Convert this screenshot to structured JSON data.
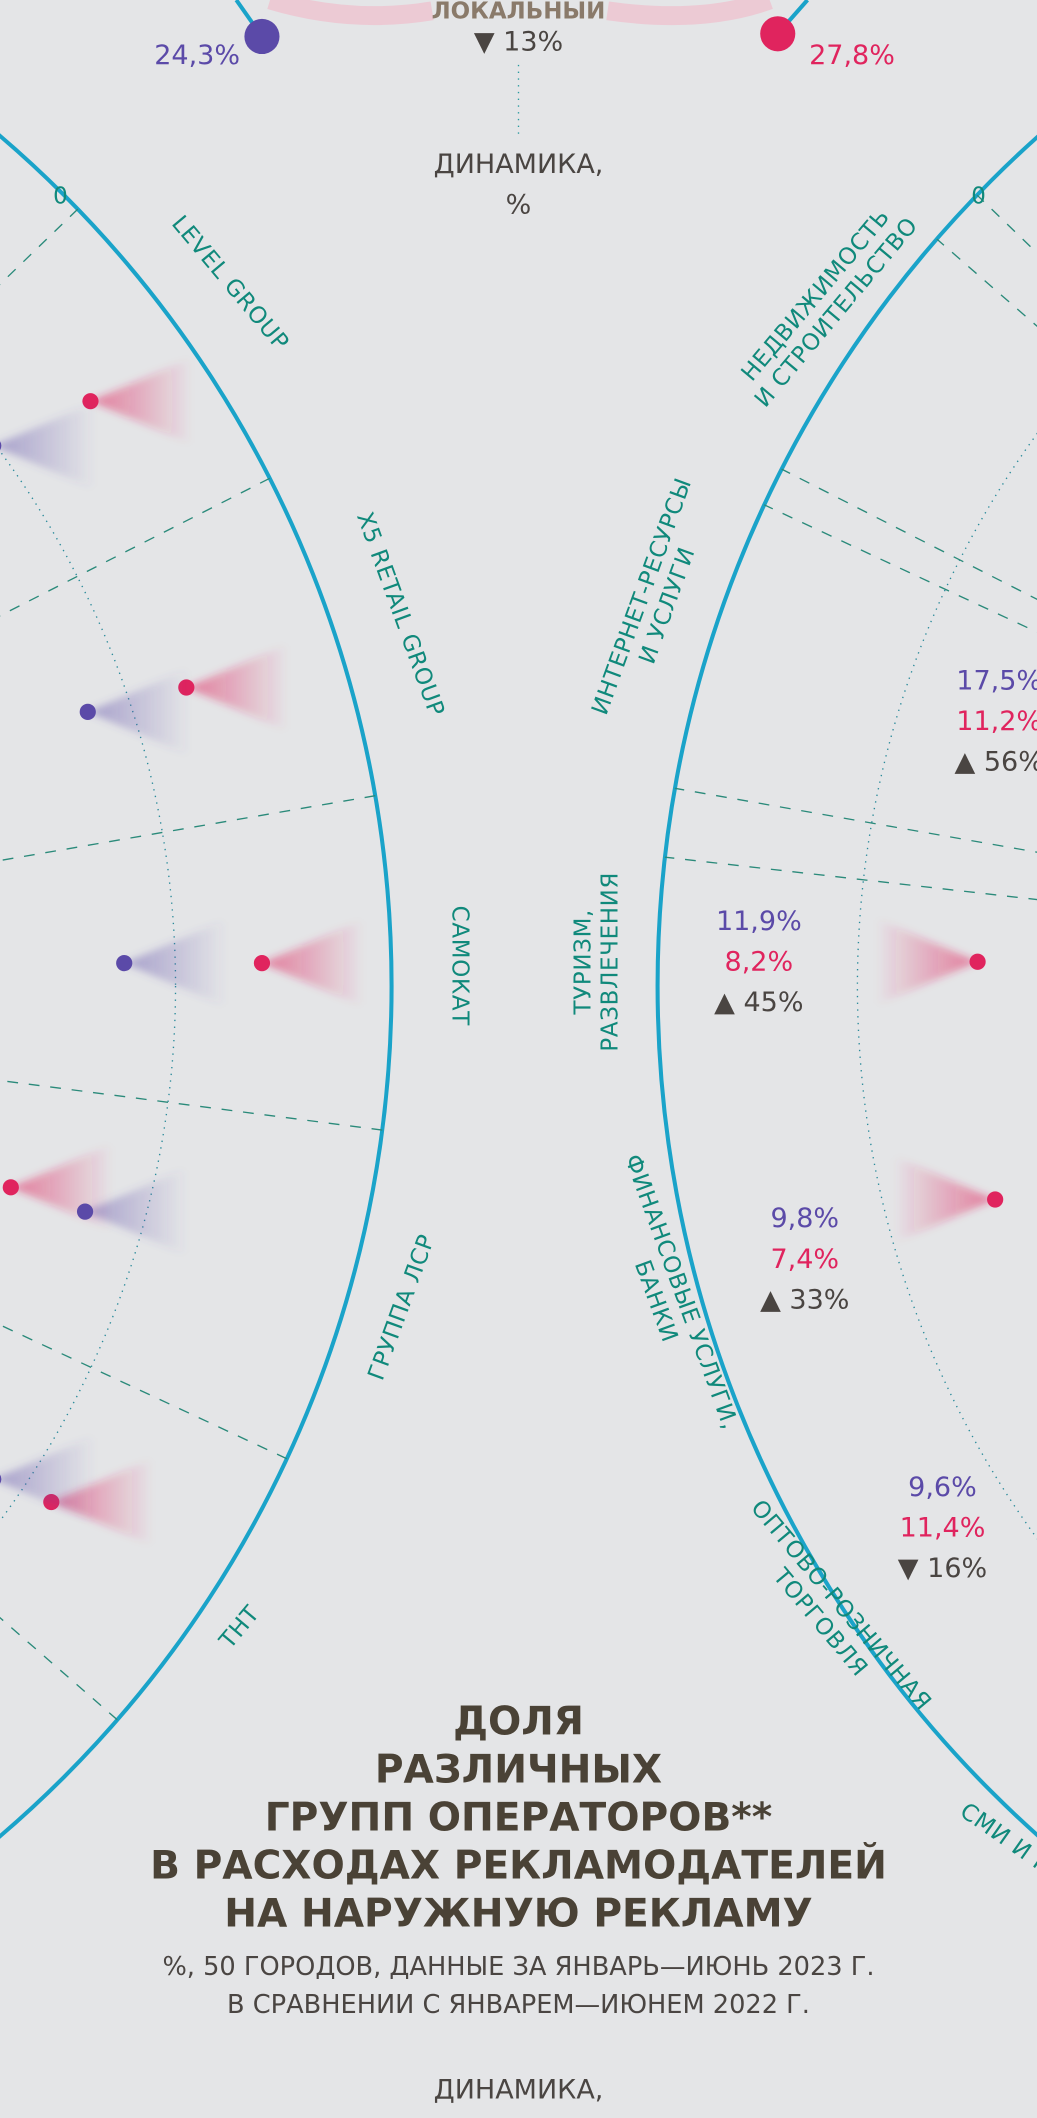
{
  "top": {
    "left_value": "24,3%",
    "label": "ЛОКАЛЬНЫЙ",
    "change": "▼ 13%",
    "right_value": "27,8%",
    "axis_label": [
      "ДИНАМИКА,",
      "%"
    ]
  },
  "left_axis": {
    "zero": "0",
    "groups": [
      "LEVEL GROUP",
      "X5 RETAIL GROUP",
      "САМОКАТ",
      "ГРУППА ЛСР",
      "ТНТ"
    ]
  },
  "right_axis": {
    "zero": "0",
    "categories": [
      [
        "НЕДВИЖИМОСТЬ",
        "И СТРОИТЕЛЬСТВО"
      ],
      [
        "ИНТЕРНЕТ-РЕСУРСЫ",
        "И УСЛУГИ"
      ],
      [
        "ТУРИЗМ,",
        "РАЗВЛЕЧЕНИЯ"
      ],
      [
        "ФИНАНСОВЫЕ УСЛУГИ,",
        "БАНКИ"
      ],
      [
        "ОПТОВО-РОЗНИЧНАЯ",
        "ТОРГОВЛЯ"
      ],
      [
        "СМИ И П"
      ]
    ],
    "values": [
      {
        "share_2023": "17,5%",
        "share_2022": "11,2%",
        "change": "▲ 56%"
      },
      {
        "share_2023": "11,9%",
        "share_2022": "8,2%",
        "change": "▲ 45%"
      },
      {
        "share_2023": "9,8%",
        "share_2022": "7,4%",
        "change": "▲ 33%"
      },
      {
        "share_2023": "9,6%",
        "share_2022": "11,4%",
        "change": "▼ 16%"
      }
    ]
  },
  "title": [
    "ДОЛЯ",
    "РАЗЛИЧНЫХ",
    "ГРУПП ОПЕРАТОРОВ**",
    "В РАСХОДАХ РЕКЛАМОДАТЕЛЕЙ",
    "НА НАРУЖНУЮ РЕКЛАМУ"
  ],
  "subtitle": [
    "%, 50 ГОРОДОВ, ДАННЫЕ ЗА ЯНВАРЬ—ИЮНЬ 2023 Г.",
    "В СРАВНЕНИИ С ЯНВАРЕМ—ИЮНЕМ 2022 Г."
  ],
  "footer": "ДИНАМИКА,"
}
